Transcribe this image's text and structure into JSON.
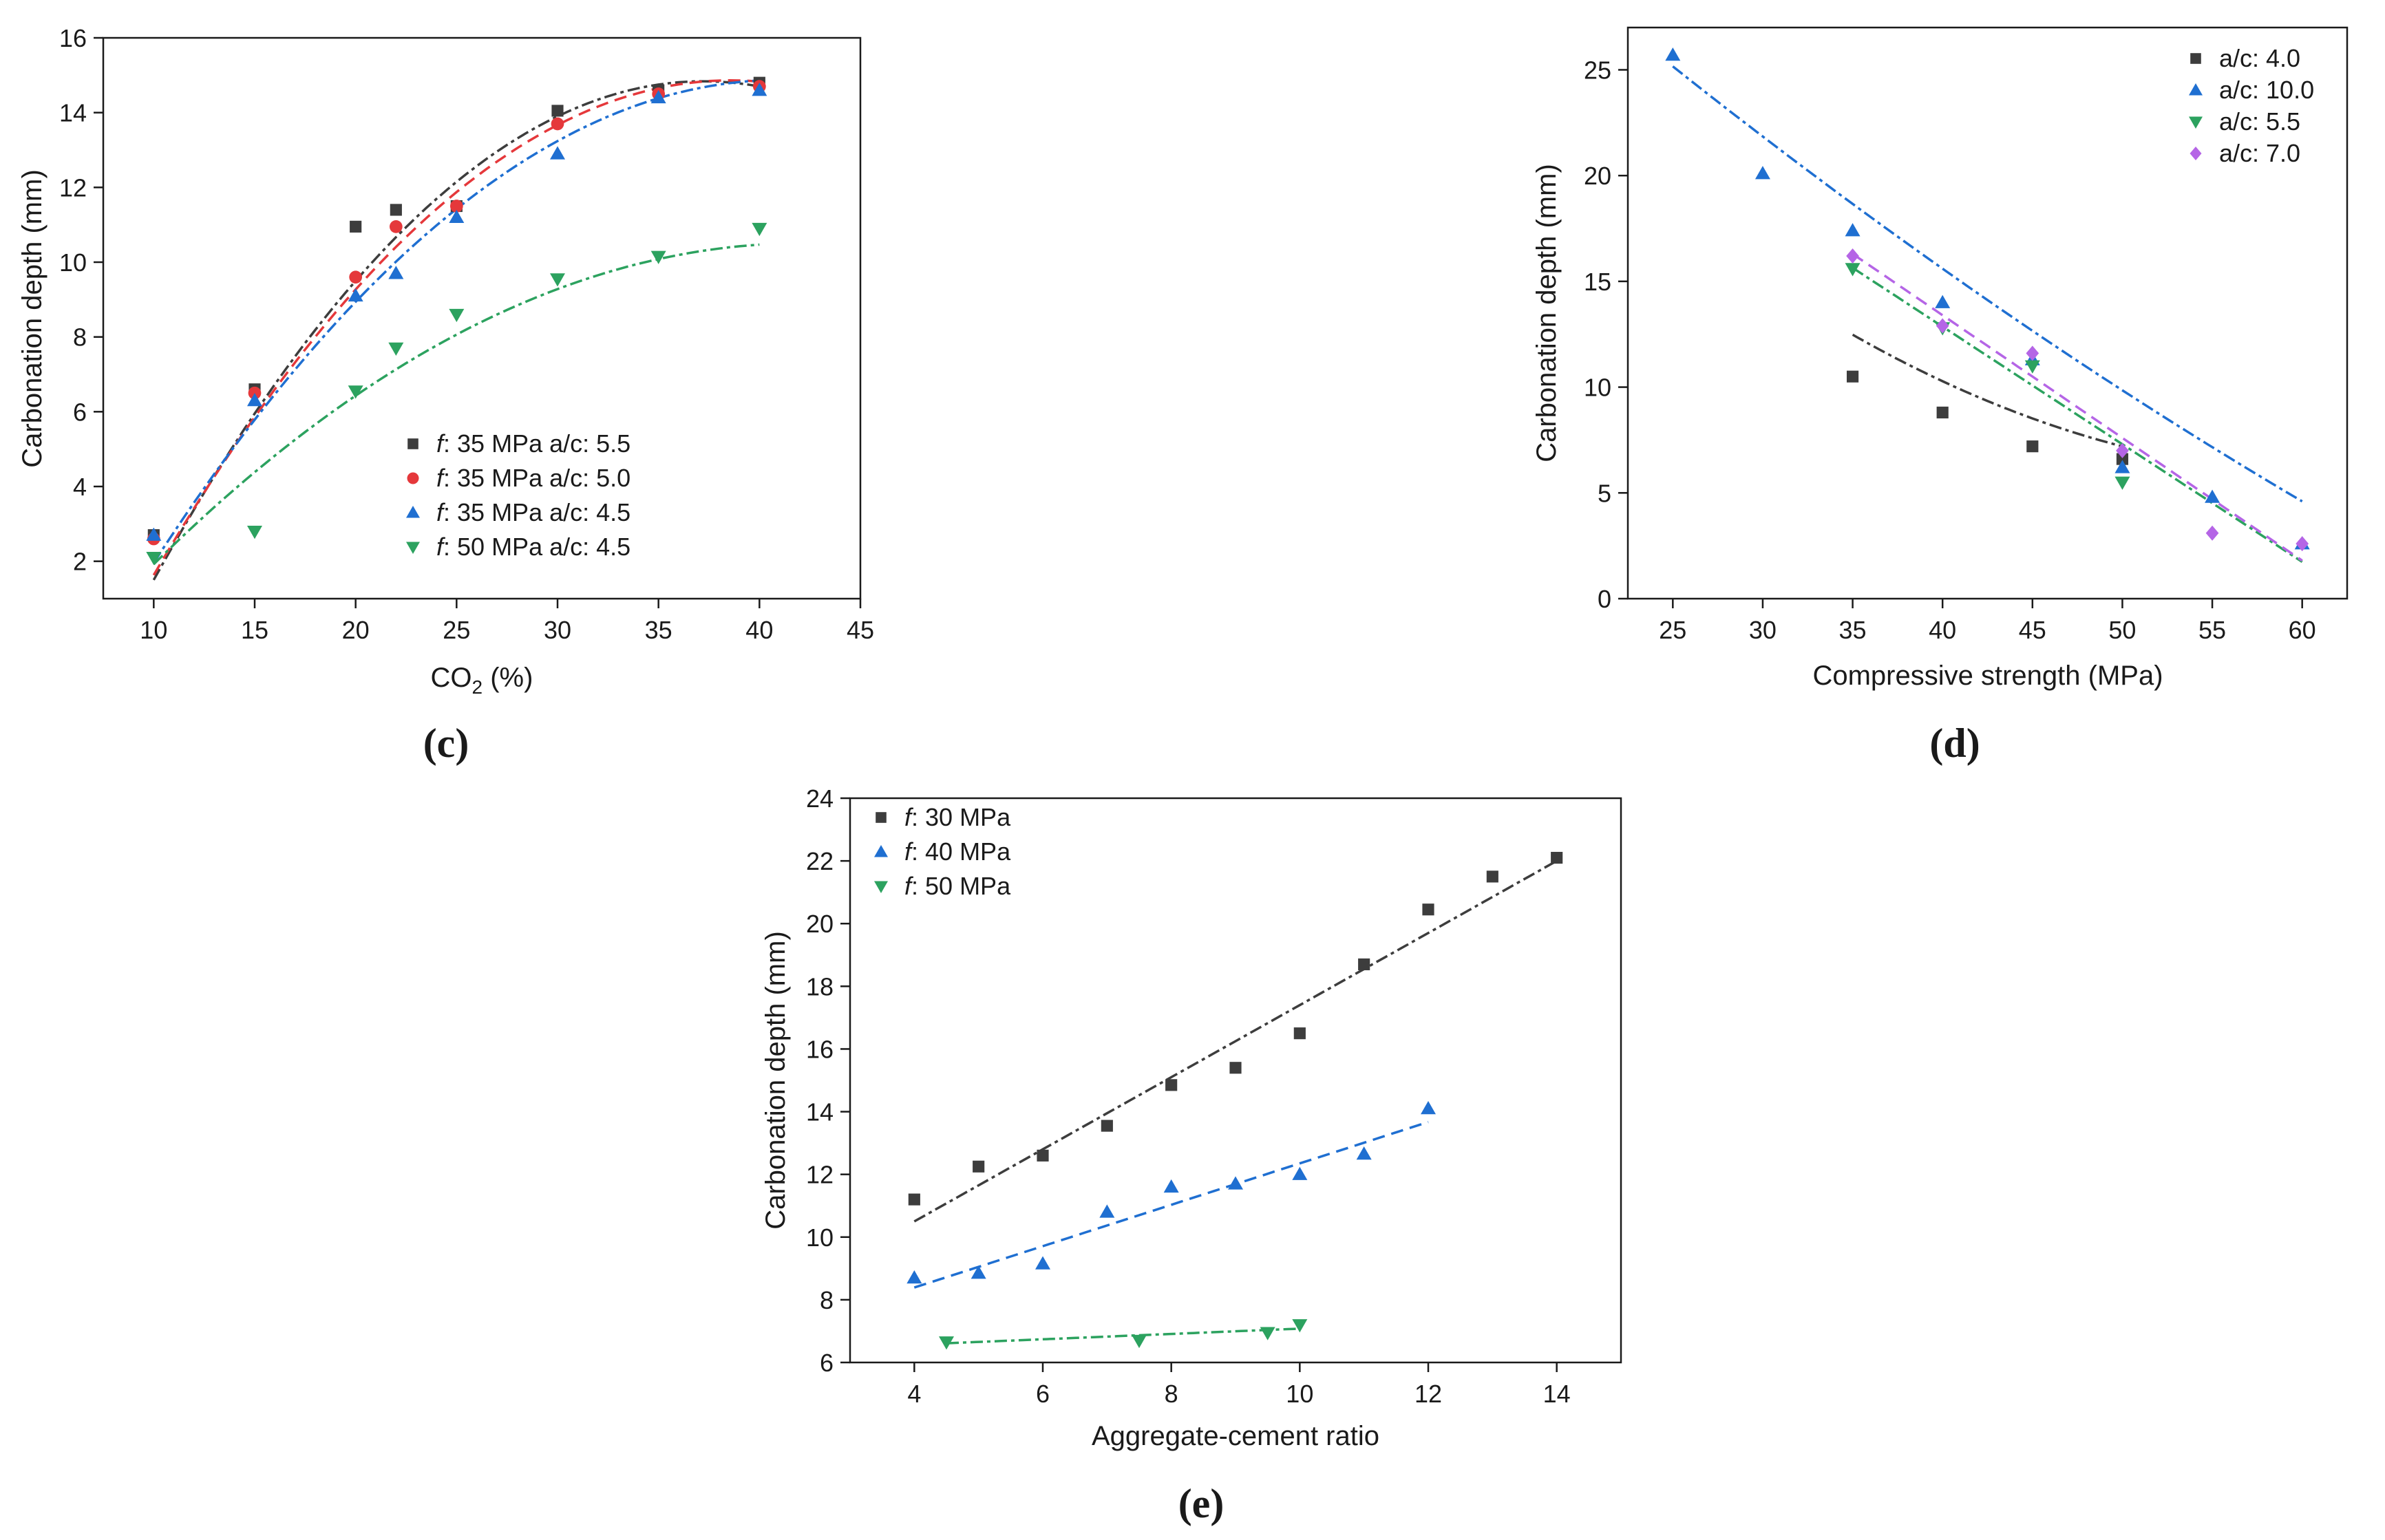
{
  "figure": {
    "panels": [
      {
        "label": "c"
      },
      {
        "label": "d"
      },
      {
        "label": "e"
      }
    ]
  },
  "chart_data": [
    {
      "panel": "c",
      "type": "scatter",
      "xlabel": "CO2 (%)",
      "xlabel_main": "CO",
      "xlabel_sub": "2",
      "xlabel_tail": " (%)",
      "ylabel": "Carbonation depth (mm)",
      "xlim": [
        7.5,
        45
      ],
      "ylim": [
        1,
        16
      ],
      "xticks": [
        10,
        15,
        20,
        25,
        30,
        35,
        40,
        45
      ],
      "yticks": [
        2,
        4,
        6,
        8,
        10,
        12,
        14,
        16
      ],
      "legend_position": "lower-right",
      "series": [
        {
          "name": "f: 35 MPa a/c: 5.5",
          "legend_f": "f",
          "legend_strength": ": 35 MPa ",
          "legend_ac": "a/c",
          "legend_ratio": ": 5.5",
          "color": "#3d3d3d",
          "marker": "square",
          "x": [
            10,
            15,
            20,
            22,
            25,
            30,
            35,
            40
          ],
          "y": [
            2.7,
            6.6,
            10.95,
            11.4,
            11.5,
            14.05,
            14.6,
            14.8
          ],
          "fit": {
            "coef": [
              -0.018,
              1.34,
              -10.1
            ],
            "x_range": [
              10,
              40
            ],
            "dash": "18 6 5 6"
          }
        },
        {
          "name": "f: 35 MPa a/c: 5.0",
          "legend_f": "f",
          "legend_strength": ": 35 MPa ",
          "legend_ac": "a/c",
          "legend_ratio": ": 5.0",
          "color": "#e5383b",
          "marker": "circle",
          "x": [
            10,
            15,
            20,
            22,
            25,
            30,
            35,
            40
          ],
          "y": [
            2.6,
            6.5,
            9.6,
            10.95,
            11.5,
            13.7,
            14.5,
            14.7
          ],
          "fit": {
            "coef": [
              -0.0162,
              1.25,
              -9.25
            ],
            "x_range": [
              10,
              40
            ],
            "dash": "18 10"
          }
        },
        {
          "name": "f: 35 MPa a/c: 4.5",
          "legend_f": "f",
          "legend_strength": ": 35 MPa ",
          "legend_ac": "a/c",
          "legend_ratio": ": 4.5",
          "color": "#1f6fd1",
          "marker": "triangle-up",
          "x": [
            10,
            15,
            20,
            22,
            25,
            30,
            35,
            40
          ],
          "y": [
            2.7,
            6.3,
            9.1,
            9.7,
            11.2,
            12.9,
            14.4,
            14.6
          ],
          "fit": {
            "coef": [
              -0.0134,
              1.1,
              -7.7
            ],
            "x_range": [
              10,
              40
            ],
            "dash": "18 6 5 6"
          }
        },
        {
          "name": "f: 50 MPa a/c: 4.5",
          "legend_f": "f",
          "legend_strength": ": 50 MPa ",
          "legend_ac": "a/c",
          "legend_ratio": ": 4.5",
          "color": "#2ca25f",
          "marker": "triangle-down",
          "x": [
            10,
            15,
            20,
            22,
            25,
            30,
            35,
            40
          ],
          "y": [
            2.1,
            2.8,
            6.55,
            7.7,
            8.6,
            9.55,
            10.15,
            10.9
          ],
          "fit": {
            "coef": [
              -0.0083,
              0.7,
              -4.25
            ],
            "x_range": [
              10,
              40
            ],
            "dash": "18 6 5 6"
          }
        }
      ]
    },
    {
      "panel": "d",
      "type": "scatter",
      "xlabel": "Compressive strength (MPa)",
      "ylabel": "Carbonation depth (mm)",
      "xlim": [
        22.5,
        62.5
      ],
      "ylim": [
        0,
        27
      ],
      "xticks": [
        25,
        30,
        35,
        40,
        45,
        50,
        55,
        60
      ],
      "yticks": [
        0,
        5,
        10,
        15,
        20,
        25
      ],
      "legend_position": "top-right",
      "series": [
        {
          "name": "a/c: 4.0",
          "legend_ac": "a/c",
          "legend_ratio": ": 4.0",
          "color": "#3d3d3d",
          "marker": "square",
          "x": [
            35,
            40,
            45,
            50
          ],
          "y": [
            10.5,
            8.8,
            7.2,
            6.6
          ],
          "fit": {
            "coef": [
              0.0088,
              -1.1,
              40.2
            ],
            "x_range": [
              35,
              50
            ],
            "dash": "18 6 5 6"
          }
        },
        {
          "name": "a/c: 10.0",
          "legend_ac": "a/c",
          "legend_ratio": ": 10.0",
          "color": "#1f6fd1",
          "marker": "triangle-up",
          "x": [
            25,
            30,
            35,
            40,
            45,
            50,
            55,
            60
          ],
          "y": [
            25.7,
            20.1,
            17.4,
            14.0,
            11.3,
            6.2,
            4.8,
            2.6
          ],
          "fit": {
            "coef": [
              0.0025,
              -0.8,
              43.6
            ],
            "x_range": [
              25,
              60
            ],
            "dash": "18 6 5 6"
          }
        },
        {
          "name": "a/c: 5.5",
          "legend_ac": "a/c",
          "legend_ratio": ": 5.5",
          "color": "#2ca25f",
          "marker": "triangle-down",
          "x": [
            35,
            40,
            45,
            50
          ],
          "y": [
            15.6,
            12.8,
            11.0,
            5.5
          ],
          "fit": {
            "coef": [
              0.0,
              -0.556,
              35.1
            ],
            "x_range": [
              35,
              60
            ],
            "dash": "18 6 5 6"
          }
        },
        {
          "name": "a/c: 7.0",
          "legend_ac": "a/c",
          "legend_ratio": ": 7.0",
          "color": "#b565e6",
          "marker": "diamond",
          "x": [
            35,
            40,
            45,
            50,
            55,
            60
          ],
          "y": [
            16.2,
            12.9,
            11.6,
            7.0,
            3.1,
            2.6
          ],
          "fit": {
            "coef": [
              0.0,
              -0.58,
              36.6
            ],
            "x_range": [
              35,
              60
            ],
            "dash": "18 10"
          }
        }
      ]
    },
    {
      "panel": "e",
      "type": "scatter",
      "xlabel": "Aggregate-cement ratio",
      "ylabel": "Carbonation depth (mm)",
      "xlim": [
        3,
        15
      ],
      "ylim": [
        6,
        24
      ],
      "xticks": [
        4,
        6,
        8,
        10,
        12,
        14
      ],
      "yticks": [
        6,
        8,
        10,
        12,
        14,
        16,
        18,
        20,
        22,
        24
      ],
      "legend_position": "top-left",
      "series": [
        {
          "name": "f: 30 MPa",
          "legend_f": "f",
          "legend_strength": ": 30 MPa",
          "color": "#3d3d3d",
          "marker": "square",
          "x": [
            4,
            5,
            6,
            7,
            8,
            9,
            10,
            11,
            12,
            13,
            14
          ],
          "y": [
            11.2,
            12.25,
            12.6,
            13.55,
            14.85,
            15.4,
            16.5,
            18.7,
            20.45,
            21.5,
            22.1
          ],
          "fit": {
            "coef": [
              0.0,
              1.15,
              5.9
            ],
            "x_range": [
              4,
              14
            ],
            "dash": "18 6 5 6"
          }
        },
        {
          "name": "f: 40 MPa",
          "legend_f": "f",
          "legend_strength": ": 40 MPa",
          "color": "#1f6fd1",
          "marker": "triangle-up",
          "x": [
            4,
            5,
            6,
            7,
            8,
            9,
            10,
            11,
            12
          ],
          "y": [
            8.7,
            8.85,
            9.15,
            10.8,
            11.6,
            11.7,
            12.0,
            12.65,
            14.1
          ],
          "fit": {
            "coef": [
              0.0,
              0.66,
              5.75
            ],
            "x_range": [
              4,
              12
            ],
            "dash": "18 10"
          }
        },
        {
          "name": "f: 50 MPa",
          "legend_f": "f",
          "legend_strength": ": 50 MPa",
          "color": "#2ca25f",
          "marker": "triangle-down",
          "x": [
            4.5,
            7.5,
            9.5,
            10
          ],
          "y": [
            6.65,
            6.7,
            6.95,
            7.2
          ],
          "fit": {
            "coef": [
              0.0,
              0.085,
              6.23
            ],
            "x_range": [
              4.5,
              10
            ],
            "dash": "18 6 5 6"
          }
        }
      ]
    }
  ]
}
